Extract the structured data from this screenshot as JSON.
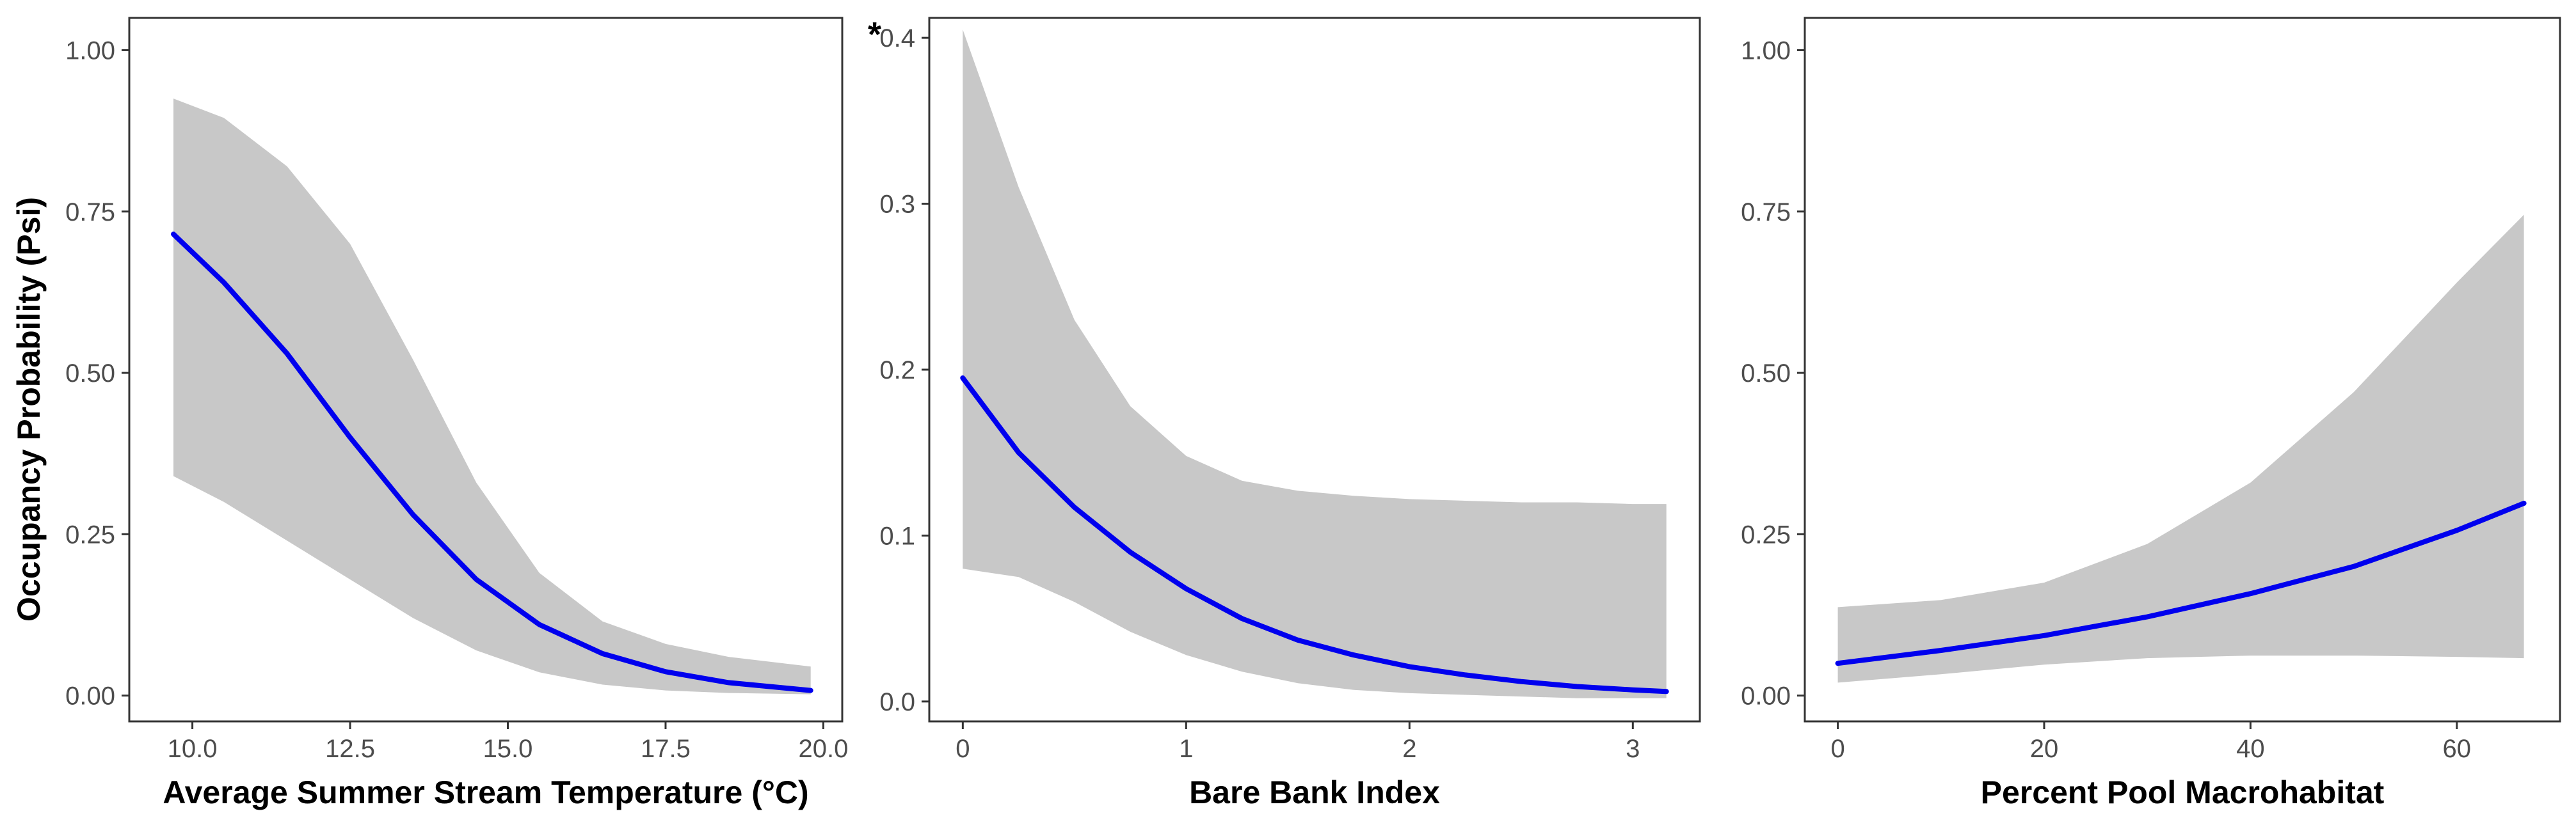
{
  "colors": {
    "line": "#0000ee",
    "band": "#c8c8c8",
    "axis": "#333333",
    "tick_text": "#4d4d4d"
  },
  "figure": {
    "ylabel": "Occupancy Probability (Psi)"
  },
  "chart_data": [
    {
      "type": "line",
      "xlabel": "Average Summer Stream Temperature (°C)",
      "ylabel": "Occupancy Probability (Psi)",
      "annotation": "",
      "xlim": [
        9.0,
        20.3
      ],
      "ylim": [
        -0.04,
        1.05
      ],
      "xticks": [
        10.0,
        12.5,
        15.0,
        17.5,
        20.0
      ],
      "xtick_labels": [
        "10.0",
        "12.5",
        "15.0",
        "17.5",
        "20.0"
      ],
      "yticks": [
        0.0,
        0.25,
        0.5,
        0.75,
        1.0
      ],
      "ytick_labels": [
        "0.00",
        "0.25",
        "0.50",
        "0.75",
        "1.00"
      ],
      "grid": false,
      "series": [
        {
          "x": [
            9.7,
            10.5,
            11.5,
            12.5,
            13.5,
            14.5,
            15.5,
            16.5,
            17.5,
            18.5,
            19.8
          ],
          "y": [
            0.715,
            0.64,
            0.53,
            0.4,
            0.28,
            0.18,
            0.11,
            0.065,
            0.037,
            0.02,
            0.008
          ],
          "lower": [
            0.34,
            0.3,
            0.24,
            0.18,
            0.12,
            0.07,
            0.036,
            0.017,
            0.008,
            0.004,
            0.002
          ],
          "upper": [
            0.925,
            0.895,
            0.82,
            0.7,
            0.52,
            0.33,
            0.19,
            0.115,
            0.08,
            0.06,
            0.045
          ]
        }
      ]
    },
    {
      "type": "line",
      "xlabel": "Bare Bank Index",
      "ylabel": "",
      "annotation": "*",
      "xlim": [
        -0.15,
        3.3
      ],
      "ylim": [
        -0.012,
        0.412
      ],
      "xticks": [
        0,
        1,
        2,
        3
      ],
      "xtick_labels": [
        "0",
        "1",
        "2",
        "3"
      ],
      "yticks": [
        0.0,
        0.1,
        0.2,
        0.3,
        0.4
      ],
      "ytick_labels": [
        "0.0",
        "0.1",
        "0.2",
        "0.3",
        "0.4"
      ],
      "grid": false,
      "series": [
        {
          "x": [
            0,
            0.25,
            0.5,
            0.75,
            1.0,
            1.25,
            1.5,
            1.75,
            2.0,
            2.25,
            2.5,
            2.75,
            3.0,
            3.15
          ],
          "y": [
            0.195,
            0.15,
            0.117,
            0.09,
            0.068,
            0.05,
            0.037,
            0.028,
            0.021,
            0.016,
            0.012,
            0.009,
            0.007,
            0.006
          ],
          "lower": [
            0.08,
            0.075,
            0.06,
            0.042,
            0.028,
            0.018,
            0.011,
            0.007,
            0.005,
            0.004,
            0.003,
            0.002,
            0.002,
            0.002
          ],
          "upper": [
            0.405,
            0.31,
            0.23,
            0.178,
            0.148,
            0.133,
            0.127,
            0.124,
            0.122,
            0.121,
            0.12,
            0.12,
            0.119,
            0.119
          ]
        }
      ]
    },
    {
      "type": "line",
      "xlabel": "Percent Pool Macrohabitat",
      "ylabel": "",
      "annotation": "",
      "xlim": [
        -3.2,
        70
      ],
      "ylim": [
        -0.04,
        1.05
      ],
      "xticks": [
        0,
        20,
        40,
        60
      ],
      "xtick_labels": [
        "0",
        "20",
        "40",
        "60"
      ],
      "yticks": [
        0.0,
        0.25,
        0.5,
        0.75,
        1.0
      ],
      "ytick_labels": [
        "0.00",
        "0.25",
        "0.50",
        "0.75",
        "1.00"
      ],
      "grid": false,
      "series": [
        {
          "x": [
            0,
            10,
            20,
            30,
            40,
            50,
            60,
            66.5
          ],
          "y": [
            0.05,
            0.07,
            0.093,
            0.122,
            0.158,
            0.2,
            0.256,
            0.298
          ],
          "lower": [
            0.02,
            0.033,
            0.048,
            0.058,
            0.062,
            0.062,
            0.06,
            0.058
          ],
          "upper": [
            0.137,
            0.148,
            0.175,
            0.235,
            0.33,
            0.47,
            0.64,
            0.745
          ]
        }
      ]
    }
  ]
}
